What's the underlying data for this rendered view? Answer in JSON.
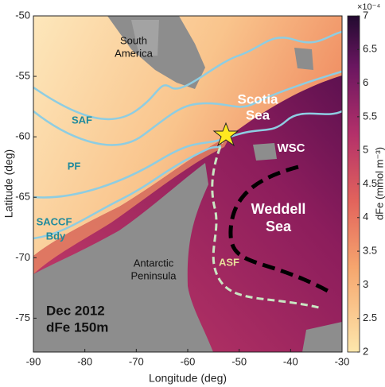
{
  "chart_data": {
    "type": "map",
    "xlabel": "Longitude (deg)",
    "ylabel": "Latitude (deg)",
    "xlim": [
      -90,
      -30
    ],
    "ylim": [
      -77.8,
      -50
    ],
    "xticks": [
      -90,
      -80,
      -70,
      -60,
      -50,
      -40,
      -30
    ],
    "yticks": [
      -75,
      -70,
      -65,
      -60,
      -55,
      -50
    ],
    "colorbar": {
      "label": "dFe (mmol m⁻³)",
      "multiplier": "×10⁻⁴",
      "lim": [
        2,
        7
      ],
      "ticks": [
        2,
        2.5,
        3,
        3.5,
        4,
        4.5,
        5,
        5.5,
        6,
        6.5,
        7
      ]
    },
    "annotations": {
      "south_america": [
        "South",
        "America"
      ],
      "scotia_sea": [
        "Scotia",
        "Sea"
      ],
      "saf": "SAF",
      "pf": "PF",
      "saccf": "SACCF",
      "bdy": "Bdy",
      "wsc": "WSC",
      "weddell_sea": [
        "Weddell",
        "Sea"
      ],
      "asf": "ASF",
      "antarctic_peninsula": [
        "Antarctic",
        "Peninsula"
      ],
      "date_depth": [
        "Dec 2012",
        "dFe 150m"
      ]
    }
  }
}
